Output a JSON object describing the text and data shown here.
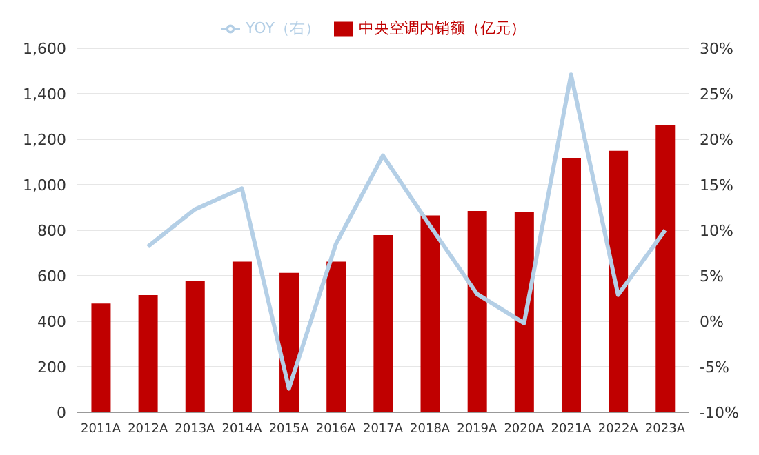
{
  "chart_data": {
    "type": "bar",
    "categories": [
      "2011A",
      "2012A",
      "2013A",
      "2014A",
      "2015A",
      "2016A",
      "2017A",
      "2018A",
      "2019A",
      "2020A",
      "2021A",
      "2022A",
      "2023A"
    ],
    "series": [
      {
        "name": "中央空调内销额（亿元）",
        "color": "#c00000",
        "values": [
          478,
          515,
          577,
          662,
          613,
          662,
          779,
          865,
          885,
          882,
          1118,
          1149,
          1264
        ]
      },
      {
        "name": "YOY（右）",
        "type": "line",
        "axis": "y2",
        "color": "#b4cfe6",
        "values": [
          null,
          8.2,
          12.3,
          14.6,
          -7.4,
          8.5,
          18.2,
          10.5,
          3.0,
          -0.2,
          27.1,
          2.9,
          10.0
        ]
      }
    ],
    "ylim": [
      0,
      1600
    ],
    "yticks": [
      {
        "value": 0,
        "label": "0"
      },
      {
        "value": 200,
        "label": "200"
      },
      {
        "value": 400,
        "label": "400"
      },
      {
        "value": 600,
        "label": "600"
      },
      {
        "value": 800,
        "label": "800"
      },
      {
        "value": 1000,
        "label": "1,000"
      },
      {
        "value": 1200,
        "label": "1,200"
      },
      {
        "value": 1400,
        "label": "1,400"
      },
      {
        "value": 1600,
        "label": "1,600"
      }
    ],
    "y2lim": [
      -10,
      30
    ],
    "y2ticks": [
      {
        "value": -10,
        "label": "-10%"
      },
      {
        "value": -5,
        "label": "-5%"
      },
      {
        "value": 0,
        "label": "0%"
      },
      {
        "value": 5,
        "label": "5%"
      },
      {
        "value": 10,
        "label": "10%"
      },
      {
        "value": 15,
        "label": "15%"
      },
      {
        "value": 20,
        "label": "20%"
      },
      {
        "value": 25,
        "label": "25%"
      },
      {
        "value": 30,
        "label": "30%"
      }
    ],
    "grid": "y",
    "legend": "top",
    "marker": "none"
  }
}
